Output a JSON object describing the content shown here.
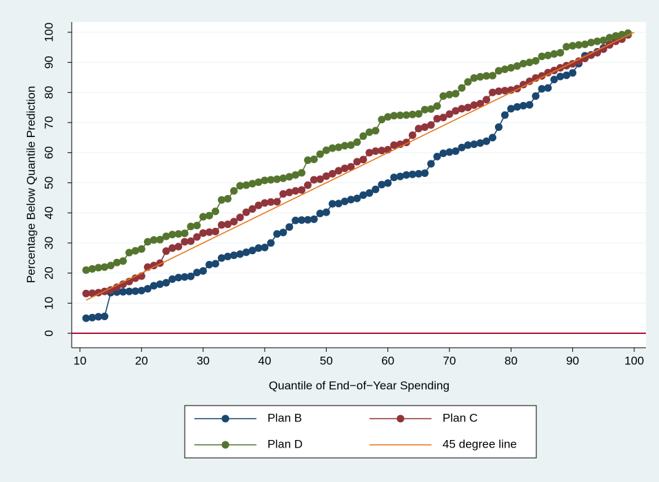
{
  "chart_data": {
    "type": "line",
    "xlabel": "Quantile of End−of−Year Spending",
    "ylabel": "Percentage Below Quantile Prediction",
    "x": [
      11,
      12,
      13,
      14,
      15,
      16,
      17,
      18,
      19,
      20,
      21,
      22,
      23,
      24,
      25,
      26,
      27,
      28,
      29,
      30,
      31,
      32,
      33,
      34,
      35,
      36,
      37,
      38,
      39,
      40,
      41,
      42,
      43,
      44,
      45,
      46,
      47,
      48,
      49,
      50,
      51,
      52,
      53,
      54,
      55,
      56,
      57,
      58,
      59,
      60,
      61,
      62,
      63,
      64,
      65,
      66,
      67,
      68,
      69,
      70,
      71,
      72,
      73,
      74,
      75,
      76,
      77,
      78,
      79,
      80,
      81,
      82,
      83,
      84,
      85,
      86,
      87,
      88,
      89,
      90,
      91,
      92,
      93,
      94,
      95,
      96,
      97,
      98,
      99
    ],
    "series": [
      {
        "name": "Plan B",
        "color": "#1a476f",
        "markers": true,
        "values": [
          5,
          5.2,
          5.5,
          5.6,
          13.5,
          13.7,
          13.8,
          13.9,
          14,
          14.2,
          14.8,
          15.8,
          16.3,
          16.8,
          18,
          18.5,
          18.7,
          18.9,
          20.2,
          20.7,
          22.8,
          23.1,
          25,
          25.5,
          25.9,
          26.3,
          26.9,
          27.5,
          28.3,
          28.5,
          30,
          33,
          33.5,
          35.3,
          37.5,
          37.6,
          37.7,
          37.9,
          39.8,
          40.2,
          43,
          43.1,
          43.8,
          44.4,
          44.8,
          45.9,
          46.6,
          47.8,
          49.4,
          49.9,
          51.8,
          52.1,
          52.6,
          52.8,
          53,
          53.2,
          56.3,
          58.7,
          59.8,
          60.2,
          60.5,
          61.7,
          62.5,
          62.8,
          63.2,
          63.8,
          65,
          68.5,
          72.5,
          74.6,
          75.2,
          75.6,
          75.9,
          78.8,
          81.2,
          81.5,
          84.3,
          85.3,
          85.7,
          86.5,
          89.6,
          92.2,
          92.5,
          93.5,
          94.8,
          96,
          97.8,
          98.4,
          99.3
        ]
      },
      {
        "name": "Plan C",
        "color": "#90353b",
        "markers": true,
        "values": [
          13.2,
          13.3,
          13.5,
          13.9,
          14.4,
          15.3,
          16.3,
          17.2,
          18.3,
          19,
          22,
          22.5,
          23.3,
          27.3,
          28.3,
          28.8,
          30.4,
          30.6,
          32,
          33.3,
          33.6,
          33.8,
          36,
          36.2,
          37.1,
          38.5,
          40.2,
          41.3,
          42.5,
          43.3,
          43.6,
          43.7,
          46.3,
          46.8,
          47.3,
          47.6,
          49.2,
          51,
          51.2,
          52.2,
          53,
          54,
          54.8,
          55.3,
          57,
          57.7,
          60,
          60.5,
          60.7,
          61,
          62.5,
          62.8,
          63.4,
          65.8,
          68,
          68.5,
          69.2,
          71.3,
          71.7,
          72.8,
          73.9,
          74.6,
          75,
          75.8,
          76.3,
          77.6,
          80,
          80.4,
          80.6,
          80.8,
          81.3,
          82.6,
          83.7,
          84.8,
          85.5,
          86.6,
          87.3,
          88.2,
          88.9,
          89.5,
          90.4,
          91.3,
          92.4,
          93.2,
          94.4,
          95.8,
          97,
          97.7,
          99.1
        ]
      },
      {
        "name": "Plan D",
        "color": "#55752f",
        "markers": true,
        "values": [
          21,
          21.4,
          21.8,
          22,
          22.5,
          23.5,
          24,
          26.8,
          27.4,
          28,
          30.4,
          31,
          31.1,
          32.2,
          32.8,
          33,
          33.2,
          35.5,
          35.8,
          38.7,
          39.1,
          40.5,
          44.3,
          44.7,
          47.3,
          49,
          49.2,
          49.7,
          50.2,
          50.8,
          51,
          51.2,
          51.5,
          52,
          52.6,
          53.3,
          57.5,
          57.8,
          59.5,
          60.8,
          61.5,
          61.8,
          62.3,
          62.5,
          63.5,
          65.5,
          66.8,
          67.3,
          71,
          71.9,
          72.3,
          72.4,
          72.5,
          72.7,
          72.9,
          74.3,
          74.5,
          75.5,
          78.8,
          79.3,
          79.6,
          81.5,
          83.5,
          84.8,
          85.2,
          85.5,
          85.6,
          87.2,
          87.7,
          88.2,
          88.8,
          89.6,
          90,
          90.5,
          92,
          92.3,
          92.8,
          93.2,
          95.2,
          95.5,
          95.8,
          96,
          96.6,
          97,
          97.3,
          98.2,
          98.8,
          99.2,
          99.7
        ]
      },
      {
        "name": "45 degree line",
        "color": "#e8751a",
        "markers": false,
        "x": [
          11,
          100
        ],
        "values": [
          11,
          100
        ]
      }
    ],
    "hline": {
      "value": 0,
      "color": "#b0103a"
    },
    "xlim": [
      8.66,
      101.9
    ],
    "ylim": [
      -4.8,
      103.4
    ],
    "xticks": [
      10,
      20,
      30,
      40,
      50,
      60,
      70,
      80,
      90,
      100
    ],
    "yticks": [
      0,
      10,
      20,
      30,
      40,
      50,
      60,
      70,
      80,
      90,
      100
    ],
    "grid": true,
    "legend": "bottom"
  }
}
